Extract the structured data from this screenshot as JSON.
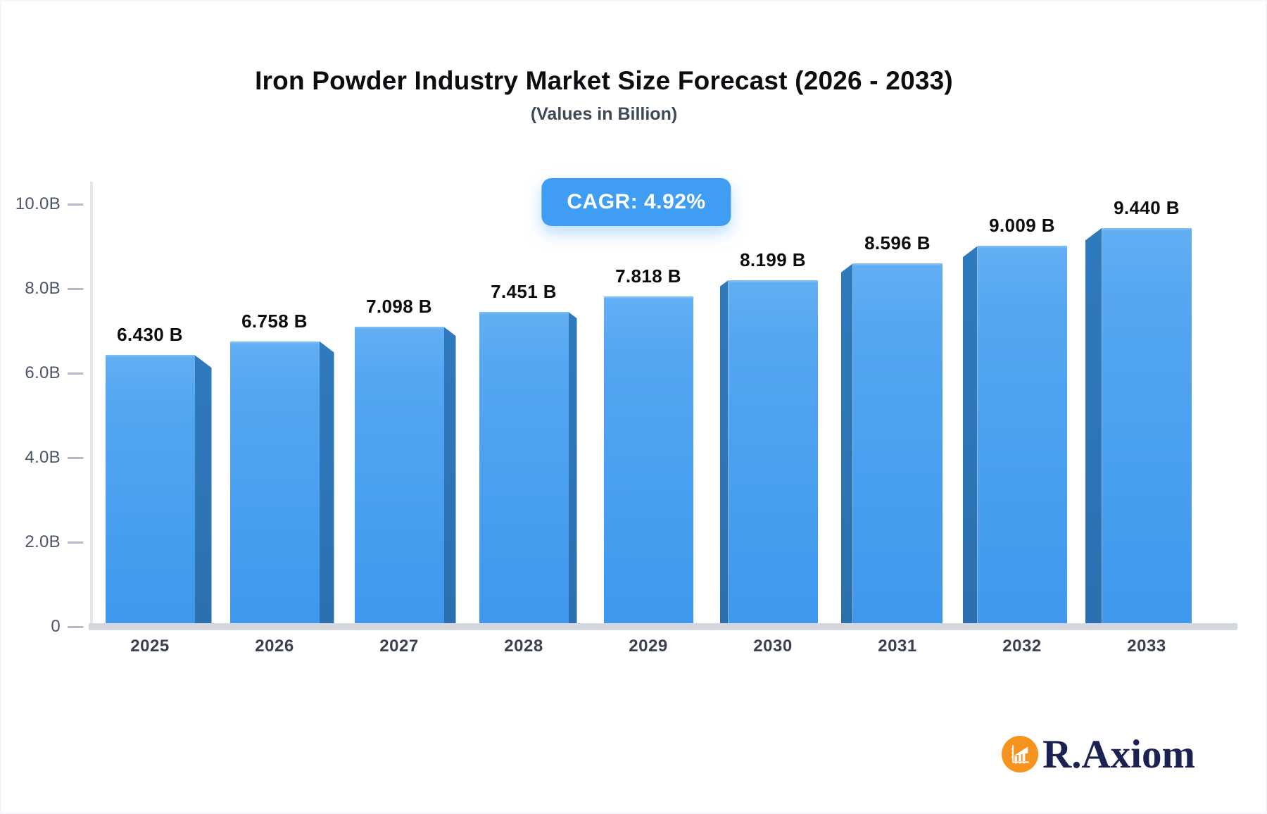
{
  "header": {
    "title": "Iron Powder Industry Market Size Forecast (2026 - 2033)",
    "subtitle": "(Values in Billion)",
    "cagr_badge": "CAGR: 4.92%"
  },
  "chart_data": {
    "type": "bar",
    "title": "Iron Powder Industry Market Size Forecast (2026 - 2033)",
    "subtitle": "(Values in Billion)",
    "unit": "Billion",
    "cagr_percent": 4.92,
    "categories": [
      "2025",
      "2026",
      "2027",
      "2028",
      "2029",
      "2030",
      "2031",
      "2032",
      "2033"
    ],
    "values": [
      6.43,
      6.758,
      7.098,
      7.451,
      7.818,
      8.199,
      8.596,
      9.009,
      9.44
    ],
    "value_labels": [
      "6.430 B",
      "6.758 B",
      "7.098 B",
      "7.451 B",
      "7.818 B",
      "8.199 B",
      "8.596 B",
      "9.009 B",
      "9.440 B"
    ],
    "y_ticks": [
      "0",
      "2.0B",
      "4.0B",
      "6.0B",
      "8.0B",
      "10.0B"
    ],
    "y_tick_values": [
      0,
      2,
      4,
      6,
      8,
      10
    ],
    "ylim": [
      0,
      10
    ],
    "grid": "off",
    "legend": "none",
    "bar_face_color": "#459ef0",
    "bar_side_color": "#2d75b5",
    "badge_color": "#3f9df3"
  },
  "brand": {
    "name": "R.Axiom",
    "icon": "bar-chart-icon",
    "icon_color": "#f6921e",
    "text_color": "#1b2150"
  }
}
